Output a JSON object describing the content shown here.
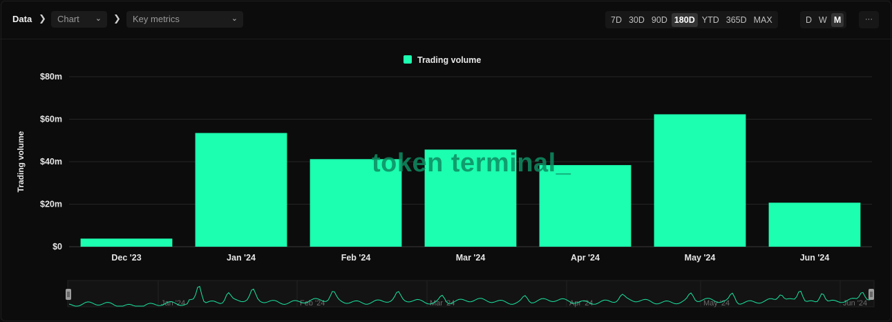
{
  "breadcrumb": {
    "root": "Data",
    "chart_select": "Chart",
    "metric_select": "Key metrics"
  },
  "ranges": [
    "7D",
    "30D",
    "90D",
    "180D",
    "YTD",
    "365D",
    "MAX"
  ],
  "active_range": "180D",
  "granularity": [
    "D",
    "W",
    "M"
  ],
  "active_granularity": "M",
  "more_label": "···",
  "watermark": "token terminal_",
  "colors": {
    "bar": "#1cffb0",
    "background": "#0c0c0c",
    "grid": "#2a2a2a"
  },
  "chart_data": {
    "type": "bar",
    "categories": [
      "Dec '23",
      "Jan '24",
      "Feb '24",
      "Mar '24",
      "Apr '24",
      "May '24",
      "Jun '24"
    ],
    "series": [
      {
        "name": "Trading volume",
        "values": [
          3.8,
          53.5,
          41.2,
          45.7,
          38.4,
          62.3,
          20.7
        ]
      }
    ],
    "ylabel": "Trading volume",
    "ylim": [
      0,
      80
    ],
    "yticks": [
      0,
      20,
      40,
      60,
      80
    ],
    "ytick_labels": [
      "$0",
      "$20m",
      "$40m",
      "$60m",
      "$80m"
    ],
    "legend": "top-center",
    "grid": true,
    "navigator": {
      "labels": [
        "Jan '24",
        "Feb '24",
        "Mar '24",
        "Apr '24",
        "May '24",
        "Jun '24"
      ]
    }
  }
}
